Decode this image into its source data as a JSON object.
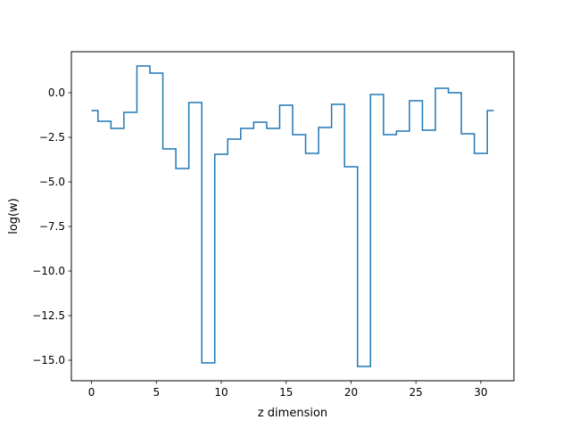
{
  "chart_data": {
    "type": "line",
    "drawstyle": "steps-mid",
    "title": "",
    "xlabel": "z dimension",
    "ylabel": "log(w)",
    "xlim": [
      -1.55,
      32.55
    ],
    "ylim": [
      -16.15,
      2.3
    ],
    "xticks": [
      0,
      5,
      10,
      15,
      20,
      25,
      30
    ],
    "xtick_labels": [
      "0",
      "5",
      "10",
      "15",
      "20",
      "25",
      "30"
    ],
    "yticks": [
      0.0,
      -2.5,
      -5.0,
      -7.5,
      -10.0,
      -12.5,
      -15.0
    ],
    "ytick_labels": [
      "0.0",
      "−2.5",
      "−5.0",
      "−7.5",
      "−10.0",
      "−12.5",
      "−15.0"
    ],
    "grid": false,
    "series": [
      {
        "color": "#1f77b4",
        "x": [
          0,
          1,
          2,
          3,
          4,
          5,
          6,
          7,
          8,
          9,
          10,
          11,
          12,
          13,
          14,
          15,
          16,
          17,
          18,
          19,
          20,
          21,
          22,
          23,
          24,
          25,
          26,
          27,
          28,
          29,
          30,
          31
        ],
        "y": [
          -1.0,
          -1.6,
          -2.0,
          -1.1,
          1.5,
          1.1,
          -3.15,
          -4.25,
          -0.55,
          -15.15,
          -3.45,
          -2.6,
          -2.0,
          -1.65,
          -2.0,
          -0.7,
          -2.35,
          -3.4,
          -1.95,
          -0.65,
          -4.15,
          -15.35,
          -0.1,
          -2.35,
          -2.15,
          -0.45,
          -2.1,
          0.25,
          0.0,
          -2.3,
          -3.4,
          -1.0
        ]
      }
    ]
  }
}
